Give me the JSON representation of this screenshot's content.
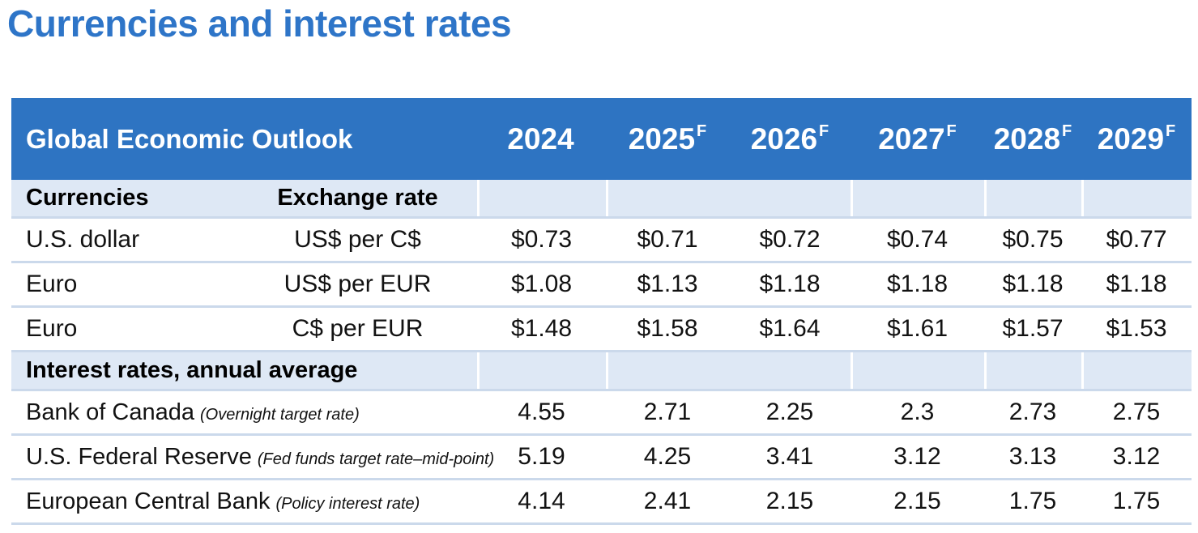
{
  "title": "Currencies and interest rates",
  "table": {
    "header": {
      "title": "Global Economic Outlook",
      "years": [
        "2024",
        "2025",
        "2026",
        "2027",
        "2028",
        "2029"
      ],
      "sups": [
        "",
        "F",
        "F",
        "F",
        "F",
        "F"
      ]
    },
    "sections": [
      {
        "label": "Currencies",
        "sublabel": "Exchange rate",
        "rows": [
          {
            "name": "U.S. dollar",
            "unit": "US$ per C$",
            "values": [
              "$0.73",
              "$0.71",
              "$0.72",
              "$0.74",
              "$0.75",
              "$0.77"
            ]
          },
          {
            "name": "Euro",
            "unit": "US$ per EUR",
            "values": [
              "$1.08",
              "$1.13",
              "$1.18",
              "$1.18",
              "$1.18",
              "$1.18"
            ]
          },
          {
            "name": "Euro",
            "unit": "C$ per EUR",
            "values": [
              "$1.48",
              "$1.58",
              "$1.64",
              "$1.61",
              "$1.57",
              "$1.53"
            ]
          }
        ]
      },
      {
        "label": "Interest rates, annual average",
        "sublabel": "",
        "rows": [
          {
            "name": "Bank of Canada",
            "note": "(Overnight target rate)",
            "values": [
              "4.55",
              "2.71",
              "2.25",
              "2.3",
              "2.73",
              "2.75"
            ]
          },
          {
            "name": "U.S. Federal Reserve",
            "note": "(Fed funds target rate–mid-point)",
            "values": [
              "5.19",
              "4.25",
              "3.41",
              "3.12",
              "3.13",
              "3.12"
            ]
          },
          {
            "name": "European Central Bank",
            "note": "(Policy interest rate)",
            "values": [
              "4.14",
              "2.41",
              "2.15",
              "2.15",
              "1.75",
              "1.75"
            ]
          }
        ]
      }
    ]
  },
  "colors": {
    "title_blue": "#2E75C8",
    "header_blue": "#2E74C2",
    "section_blue": "#DEE8F5",
    "divider": "#CBD9EB",
    "header_text": "#FFFFFF",
    "body_text": "#121212"
  }
}
